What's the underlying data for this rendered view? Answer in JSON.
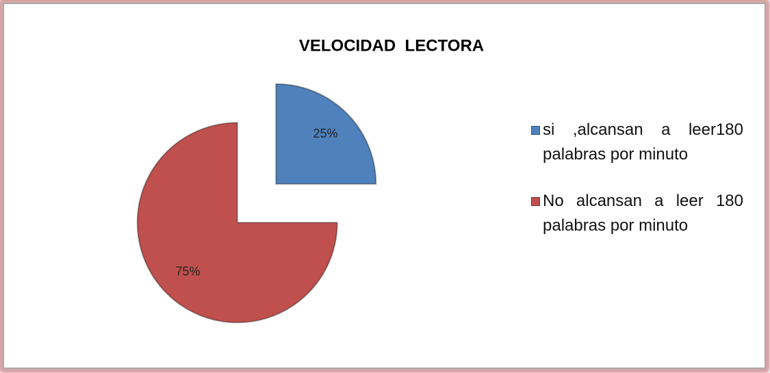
{
  "chart_data": {
    "type": "pie",
    "title": "VELOCIDAD  LECTORA",
    "categories": [
      "si ,alcansan a leer180 palabras por minuto",
      "No alcansan a leer 180 palabras por minuto"
    ],
    "values": [
      25,
      75
    ],
    "value_labels": [
      "25%",
      "75%"
    ],
    "colors": [
      "#4f81bd",
      "#c0504d"
    ],
    "legend": "right"
  }
}
